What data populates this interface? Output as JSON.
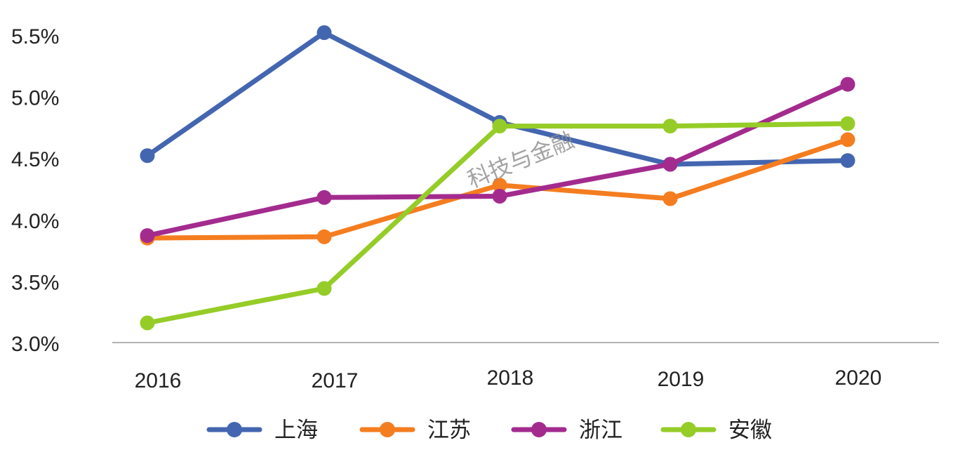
{
  "watermark": "科技与金融",
  "chart_data": {
    "type": "line",
    "categories": [
      "2016",
      "2017",
      "2018",
      "2019",
      "2020"
    ],
    "ylim": [
      3.0,
      5.5
    ],
    "y_ticks": [
      3.0,
      3.5,
      4.0,
      4.5,
      5.0,
      5.5
    ],
    "y_tick_labels": [
      "3.0%",
      "3.5%",
      "4.0%",
      "4.5%",
      "5.0%",
      "5.5%"
    ],
    "legend_position": "bottom",
    "grid": false,
    "series": [
      {
        "name": "上海",
        "color": "#4466B0",
        "values": [
          4.52,
          5.52,
          4.79,
          4.45,
          4.48
        ]
      },
      {
        "name": "江苏",
        "color": "#F47D20",
        "values": [
          3.85,
          3.86,
          4.28,
          4.17,
          4.65
        ]
      },
      {
        "name": "浙江",
        "color": "#A32B8E",
        "values": [
          3.87,
          4.18,
          4.19,
          4.45,
          5.1
        ]
      },
      {
        "name": "安徽",
        "color": "#95CC27",
        "values": [
          3.16,
          3.44,
          4.76,
          4.76,
          4.78
        ]
      }
    ]
  }
}
